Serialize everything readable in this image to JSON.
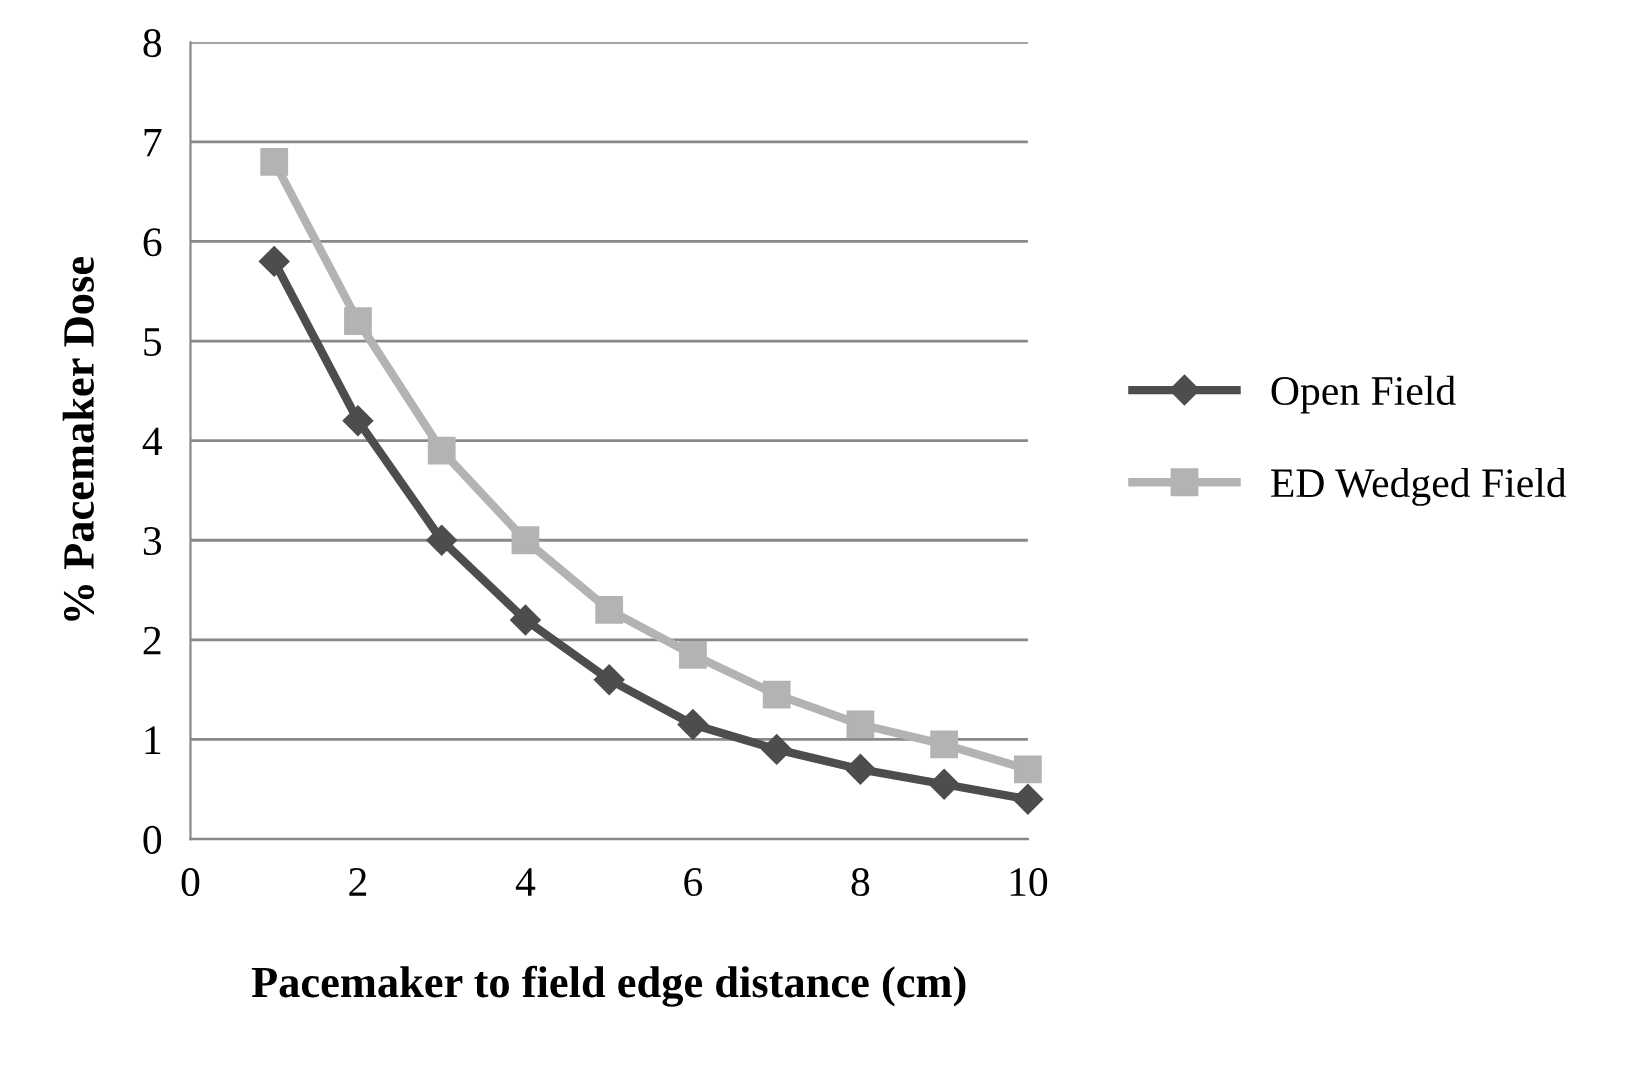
{
  "chart_data": {
    "type": "line",
    "xlabel": "Pacemaker to field edge distance (cm)",
    "ylabel": "% Pacemaker Dose",
    "x": [
      1,
      2,
      3,
      4,
      5,
      6,
      7,
      8,
      9,
      10
    ],
    "series": [
      {
        "name": "Open Field",
        "color": "#4d4d4d",
        "marker": "diamond",
        "values": [
          5.8,
          4.2,
          3.0,
          2.2,
          1.6,
          1.15,
          0.9,
          0.7,
          0.55,
          0.4
        ]
      },
      {
        "name": "ED Wedged Field",
        "color": "#b3b3b3",
        "marker": "square",
        "values": [
          6.8,
          5.2,
          3.9,
          3.0,
          2.3,
          1.85,
          1.45,
          1.15,
          0.95,
          0.7
        ]
      }
    ],
    "xlim": [
      0,
      10
    ],
    "xticks": [
      0,
      2,
      4,
      6,
      8,
      10
    ],
    "ylim": [
      0,
      8
    ],
    "yticks": [
      0,
      1,
      2,
      3,
      4,
      5,
      6,
      7,
      8
    ],
    "grid": "y",
    "legend": "right",
    "line_style": "solid"
  }
}
